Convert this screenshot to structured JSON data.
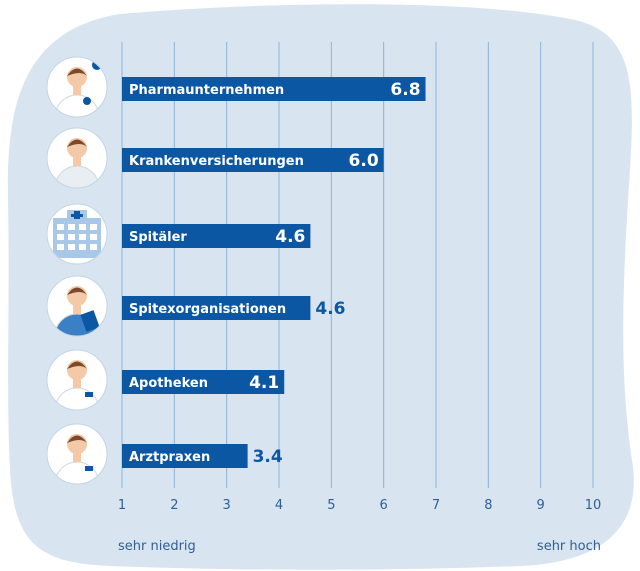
{
  "colors": {
    "background_blob": "#d8e5f1",
    "bar": "#0b57a4",
    "gridline": "#8fb3d6",
    "text_blue": "#2f5f93"
  },
  "chart_data": {
    "type": "bar",
    "orientation": "horizontal",
    "categories": [
      "Pharmaunternehmen",
      "Krankenversicherungen",
      "Spitäler",
      "Spitexorganisationen",
      "Apotheken",
      "Arztpraxen"
    ],
    "values": [
      6.8,
      6.0,
      4.6,
      4.6,
      4.1,
      3.4
    ],
    "value_labels": [
      "6.8",
      "6.0",
      "4.6",
      "4.6",
      "4.1",
      "3.4"
    ],
    "xlim": [
      1,
      10
    ],
    "xticks": [
      "1",
      "2",
      "3",
      "4",
      "5",
      "6",
      "7",
      "8",
      "9",
      "10"
    ],
    "x_caption_left": "sehr niedrig",
    "x_caption_right": "sehr hoch",
    "icons": [
      "pharma-researcher-icon",
      "insurance-agent-icon",
      "hospital-building-icon",
      "nurse-clipboard-icon",
      "pharmacist-icon",
      "doctor-icon"
    ],
    "grid": true
  }
}
